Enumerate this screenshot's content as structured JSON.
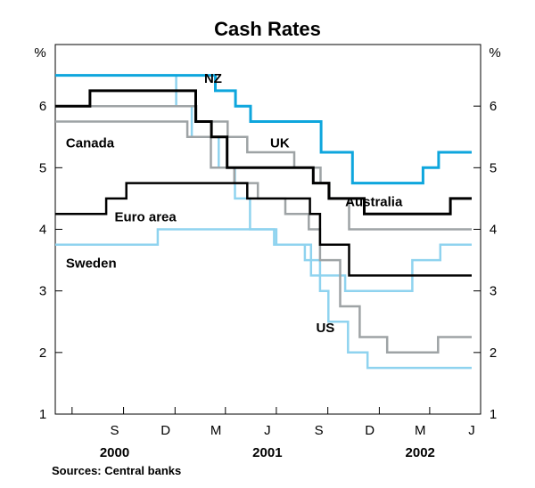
{
  "chart_data": {
    "type": "line",
    "step": true,
    "title": "Cash Rates",
    "unit_left": "%",
    "unit_right": "%",
    "ylim": [
      1,
      7
    ],
    "yticks": [
      1,
      2,
      3,
      4,
      5,
      6
    ],
    "xlim": [
      "2000-06-01",
      "2002-07-01"
    ],
    "xtick_labels": [
      {
        "label": "S",
        "date": "2000-09-15"
      },
      {
        "label": "D",
        "date": "2000-12-15"
      },
      {
        "label": "M",
        "date": "2001-03-15"
      },
      {
        "label": "J",
        "date": "2001-06-15"
      },
      {
        "label": "S",
        "date": "2001-09-15"
      },
      {
        "label": "D",
        "date": "2001-12-15"
      },
      {
        "label": "M",
        "date": "2002-03-15"
      },
      {
        "label": "J",
        "date": "2002-06-15"
      }
    ],
    "xticks_minor": [
      "2000-07-01",
      "2000-10-01",
      "2001-01-01",
      "2001-04-01",
      "2001-07-01",
      "2001-10-01",
      "2002-01-01",
      "2002-04-01",
      "2002-07-01"
    ],
    "year_labels": [
      {
        "label": "2000",
        "date": "2000-09-15"
      },
      {
        "label": "2001",
        "date": "2001-06-15"
      },
      {
        "label": "2002",
        "date": "2002-03-15"
      }
    ],
    "gridlines": false,
    "series": [
      {
        "name": "Sweden",
        "color": "#8fd3ef",
        "width": 2.5,
        "label_date": "2000-06-20",
        "label_value": 3.45,
        "points": [
          [
            "2000-06-01",
            3.75
          ],
          [
            "2000-12-01",
            4.0
          ],
          [
            "2001-07-01",
            3.75
          ],
          [
            "2001-09-01",
            3.25
          ],
          [
            "2001-11-01",
            3.0
          ],
          [
            "2002-03-01",
            3.5
          ],
          [
            "2002-04-20",
            3.75
          ],
          [
            "2002-06-15",
            3.75
          ]
        ]
      },
      {
        "name": "US",
        "color": "#8fd3ef",
        "width": 2.5,
        "label_date": "2001-09-10",
        "label_value": 2.4,
        "points": [
          [
            "2000-06-01",
            6.5
          ],
          [
            "2000-12-18",
            6.5
          ],
          [
            "2001-01-03",
            6.0
          ],
          [
            "2001-01-31",
            5.5
          ],
          [
            "2001-03-20",
            5.0
          ],
          [
            "2001-04-18",
            4.5
          ],
          [
            "2001-05-15",
            4.0
          ],
          [
            "2001-06-27",
            3.75
          ],
          [
            "2001-08-21",
            3.5
          ],
          [
            "2001-09-17",
            3.0
          ],
          [
            "2001-10-02",
            2.5
          ],
          [
            "2001-11-06",
            2.0
          ],
          [
            "2001-12-11",
            1.75
          ],
          [
            "2002-06-15",
            1.75
          ]
        ]
      },
      {
        "name": "UK",
        "color": "#9ea3a5",
        "width": 2.5,
        "label_date": "2001-06-20",
        "label_value": 5.4,
        "points": [
          [
            "2000-06-01",
            6.0
          ],
          [
            "2001-02-08",
            5.75
          ],
          [
            "2001-04-05",
            5.5
          ],
          [
            "2001-05-10",
            5.25
          ],
          [
            "2001-08-02",
            5.0
          ],
          [
            "2001-09-18",
            4.75
          ],
          [
            "2001-10-04",
            4.5
          ],
          [
            "2001-11-08",
            4.0
          ],
          [
            "2002-06-15",
            4.0
          ]
        ]
      },
      {
        "name": "Canada",
        "color": "#9ea3a5",
        "width": 2.5,
        "label_date": "2000-06-20",
        "label_value": 5.4,
        "points": [
          [
            "2000-06-01",
            5.75
          ],
          [
            "2001-01-23",
            5.5
          ],
          [
            "2001-03-06",
            5.0
          ],
          [
            "2001-04-17",
            4.75
          ],
          [
            "2001-05-29",
            4.5
          ],
          [
            "2001-07-17",
            4.25
          ],
          [
            "2001-08-28",
            4.0
          ],
          [
            "2001-09-17",
            3.5
          ],
          [
            "2001-10-23",
            2.75
          ],
          [
            "2001-11-27",
            2.25
          ],
          [
            "2002-01-15",
            2.0
          ],
          [
            "2002-04-16",
            2.25
          ],
          [
            "2002-06-15",
            2.25
          ]
        ]
      },
      {
        "name": "Euro area",
        "color": "#000000",
        "width": 2.5,
        "label_date": "2000-09-15",
        "label_value": 4.2,
        "points": [
          [
            "2000-06-01",
            4.25
          ],
          [
            "2000-08-31",
            4.5
          ],
          [
            "2000-10-06",
            4.75
          ],
          [
            "2001-05-10",
            4.5
          ],
          [
            "2001-08-30",
            4.25
          ],
          [
            "2001-09-17",
            3.75
          ],
          [
            "2001-11-08",
            3.25
          ],
          [
            "2002-06-15",
            3.25
          ]
        ]
      },
      {
        "name": "Australia",
        "color": "#000000",
        "width": 3,
        "label_date": "2001-11-01",
        "label_value": 4.45,
        "points": [
          [
            "2000-06-01",
            6.0
          ],
          [
            "2000-07-01",
            6.0
          ],
          [
            "2000-08-02",
            6.25
          ],
          [
            "2001-02-07",
            5.75
          ],
          [
            "2001-03-07",
            5.5
          ],
          [
            "2001-04-04",
            5.0
          ],
          [
            "2001-09-05",
            4.75
          ],
          [
            "2001-10-03",
            4.5
          ],
          [
            "2001-12-05",
            4.25
          ],
          [
            "2002-05-08",
            4.5
          ],
          [
            "2002-06-15",
            4.5
          ]
        ]
      },
      {
        "name": "NZ",
        "color": "#0ea6dd",
        "width": 3,
        "label_date": "2001-02-22",
        "label_value": 6.45,
        "points": [
          [
            "2000-06-01",
            6.5
          ],
          [
            "2001-03-14",
            6.25
          ],
          [
            "2001-04-19",
            6.0
          ],
          [
            "2001-05-16",
            5.75
          ],
          [
            "2001-09-19",
            5.25
          ],
          [
            "2001-11-14",
            4.75
          ],
          [
            "2002-03-20",
            5.0
          ],
          [
            "2002-04-17",
            5.25
          ],
          [
            "2002-06-15",
            5.25
          ]
        ]
      }
    ]
  },
  "footer": {
    "source": "Sources: Central banks"
  }
}
